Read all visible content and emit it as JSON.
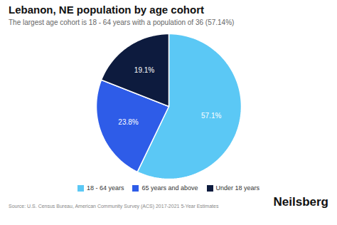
{
  "chart_data": {
    "type": "pie",
    "title": "Lebanon, NE population by age cohort",
    "subtitle": "The largest age cohort is 18 - 64 years with a population of 36 (57.14%)",
    "categories": [
      "18 - 64 years",
      "65 years and above",
      "Under 18 years"
    ],
    "values": [
      57.14,
      23.81,
      19.05
    ],
    "value_labels": [
      "57.1%",
      "23.8%",
      "19.1%"
    ],
    "colors": [
      "#5bc8f5",
      "#2e5ce8",
      "#0d1b3e"
    ],
    "data_labels": true,
    "legend": "bottom",
    "annotations": [
      "Source: U.S. Census Bureau, American Community Survey (ACS) 2017-2021 5-Year Estimates",
      "Neilsberg"
    ]
  }
}
